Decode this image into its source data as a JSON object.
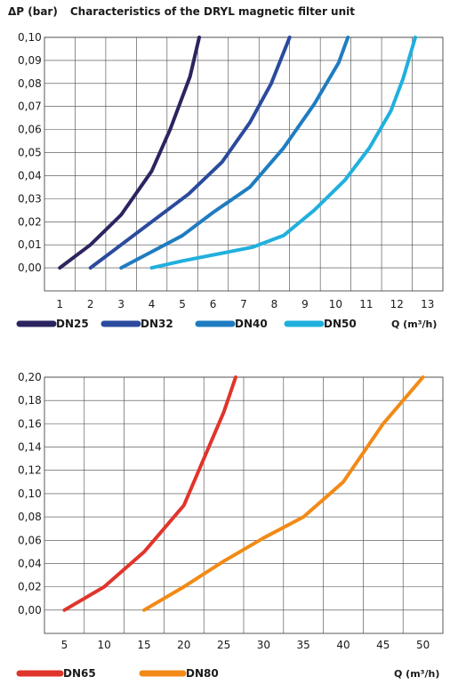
{
  "header": {
    "ylabel": "ΔP (bar)",
    "title": "Characteristics of the DRYL magnetic filter unit"
  },
  "chart_data": [
    {
      "type": "line",
      "title": "Characteristics of the DRYL magnetic filter unit",
      "ylabel": "ΔP (bar)",
      "xlabel": "Q (m³/h)",
      "xlim": [
        0.5,
        13.5
      ],
      "ylim": [
        -0.01,
        0.1
      ],
      "xticks": [
        1,
        2,
        3,
        4,
        5,
        6,
        7,
        8,
        9,
        10,
        11,
        12,
        13
      ],
      "xtick_labels": [
        "1",
        "2",
        "3",
        "4",
        "5",
        "6",
        "7",
        "8",
        "9",
        "10",
        "11",
        "12",
        "13"
      ],
      "yticks": [
        0,
        0.01,
        0.02,
        0.03,
        0.04,
        0.05,
        0.06,
        0.07,
        0.08,
        0.09,
        0.1
      ],
      "ytick_labels": [
        "0,00",
        "0,01",
        "0,02",
        "0,03",
        "0,04",
        "0,05",
        "0,06",
        "0,07",
        "0,08",
        "0,09",
        "0,10"
      ],
      "grid": true,
      "legend_position": "bottom",
      "series": [
        {
          "name": "DN25",
          "color": "#2a2560",
          "points": [
            [
              1.0,
              0.0
            ],
            [
              2.0,
              0.01
            ],
            [
              3.0,
              0.023
            ],
            [
              4.0,
              0.042
            ],
            [
              4.6,
              0.06
            ],
            [
              5.25,
              0.083
            ],
            [
              5.55,
              0.1
            ]
          ]
        },
        {
          "name": "DN32",
          "color": "#2b4a9e",
          "points": [
            [
              2.0,
              0.0
            ],
            [
              3.0,
              0.01
            ],
            [
              4.0,
              0.02
            ],
            [
              5.2,
              0.032
            ],
            [
              6.3,
              0.046
            ],
            [
              7.2,
              0.063
            ],
            [
              7.9,
              0.08
            ],
            [
              8.5,
              0.1
            ]
          ]
        },
        {
          "name": "DN40",
          "color": "#1f7cc0",
          "points": [
            [
              3.0,
              0.0
            ],
            [
              4.0,
              0.007
            ],
            [
              5.0,
              0.014
            ],
            [
              6.0,
              0.024
            ],
            [
              7.2,
              0.035
            ],
            [
              8.3,
              0.052
            ],
            [
              9.3,
              0.071
            ],
            [
              10.1,
              0.089
            ],
            [
              10.4,
              0.1
            ]
          ]
        },
        {
          "name": "DN50",
          "color": "#20b0de",
          "points": [
            [
              4.0,
              0.0
            ],
            [
              5.0,
              0.003
            ],
            [
              7.3,
              0.009
            ],
            [
              8.3,
              0.014
            ],
            [
              9.3,
              0.025
            ],
            [
              10.3,
              0.038
            ],
            [
              11.1,
              0.052
            ],
            [
              11.8,
              0.068
            ],
            [
              12.2,
              0.082
            ],
            [
              12.6,
              0.1
            ]
          ]
        }
      ],
      "unit_label": "Q (m³/h)"
    },
    {
      "type": "line",
      "title": "",
      "ylabel": "",
      "xlabel": "Q (m³/h)",
      "xlim": [
        2.5,
        52.5
      ],
      "ylim": [
        -0.02,
        0.2
      ],
      "xticks": [
        5,
        10,
        15,
        20,
        25,
        30,
        35,
        40,
        45,
        50
      ],
      "xtick_labels": [
        "5",
        "10",
        "15",
        "20",
        "25",
        "30",
        "35",
        "40",
        "45",
        "50"
      ],
      "yticks": [
        0,
        0.02,
        0.04,
        0.06,
        0.08,
        0.1,
        0.12,
        0.14,
        0.16,
        0.18,
        0.2
      ],
      "ytick_labels": [
        "0,00",
        "0,02",
        "0,04",
        "0,06",
        "0,08",
        "0,10",
        "0,12",
        "0,14",
        "0,16",
        "0,18",
        "0,20"
      ],
      "grid": true,
      "legend_position": "bottom",
      "series": [
        {
          "name": "DN65",
          "color": "#e0352b",
          "points": [
            [
              5.0,
              0.0
            ],
            [
              10.0,
              0.02
            ],
            [
              15.0,
              0.05
            ],
            [
              20.0,
              0.09
            ],
            [
              22.5,
              0.13
            ],
            [
              25.0,
              0.17
            ],
            [
              26.5,
              0.2
            ]
          ]
        },
        {
          "name": "DN80",
          "color": "#f28a16",
          "points": [
            [
              15.0,
              0.0
            ],
            [
              20.0,
              0.02
            ],
            [
              25.0,
              0.042
            ],
            [
              30.0,
              0.062
            ],
            [
              35.0,
              0.08
            ],
            [
              40.0,
              0.11
            ],
            [
              45.0,
              0.16
            ],
            [
              50.0,
              0.2
            ]
          ]
        }
      ],
      "unit_label": "Q (m³/h)"
    }
  ]
}
